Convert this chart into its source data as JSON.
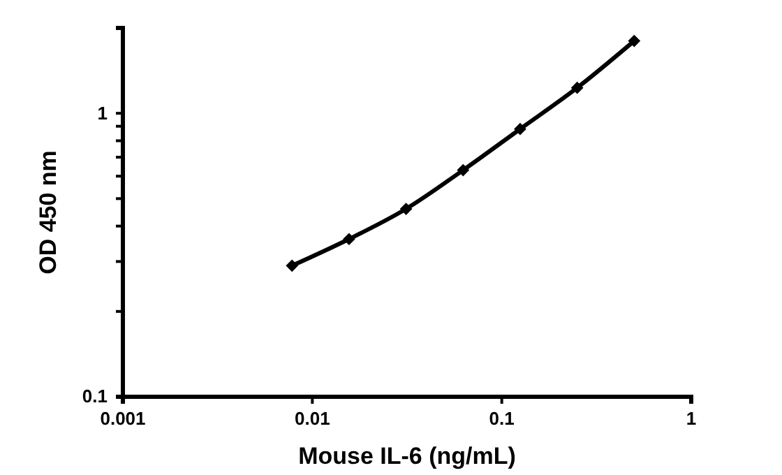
{
  "chart_data": {
    "type": "line",
    "xlabel": "Mouse IL-6 (ng/mL)",
    "ylabel": "OD 450 nm",
    "x": [
      0.0078125,
      0.015625,
      0.03125,
      0.0625,
      0.125,
      0.25,
      0.5
    ],
    "series": [
      {
        "color": "#000000",
        "values": [
          0.29,
          0.36,
          0.46,
          0.63,
          0.88,
          1.23,
          1.8
        ]
      }
    ],
    "log": "xy",
    "marker": "diamond",
    "line_style": "solid",
    "xlim": [
      0.001,
      1
    ],
    "xticks": [
      0.001,
      0.01,
      0.1,
      1
    ],
    "ylim": [
      0.1,
      2
    ],
    "yticks": [
      0.1,
      {
        "value": 0.2,
        "label": null
      },
      {
        "value": 0.3,
        "label": null
      },
      {
        "value": 0.4,
        "label": null
      },
      {
        "value": 0.5,
        "label": null
      },
      {
        "value": 0.6,
        "label": null
      },
      {
        "value": 0.7,
        "label": null
      },
      {
        "value": 0.8,
        "label": null
      },
      {
        "value": 0.9,
        "label": null
      },
      1,
      {
        "value": 2,
        "label": null
      }
    ],
    "grid": false
  }
}
